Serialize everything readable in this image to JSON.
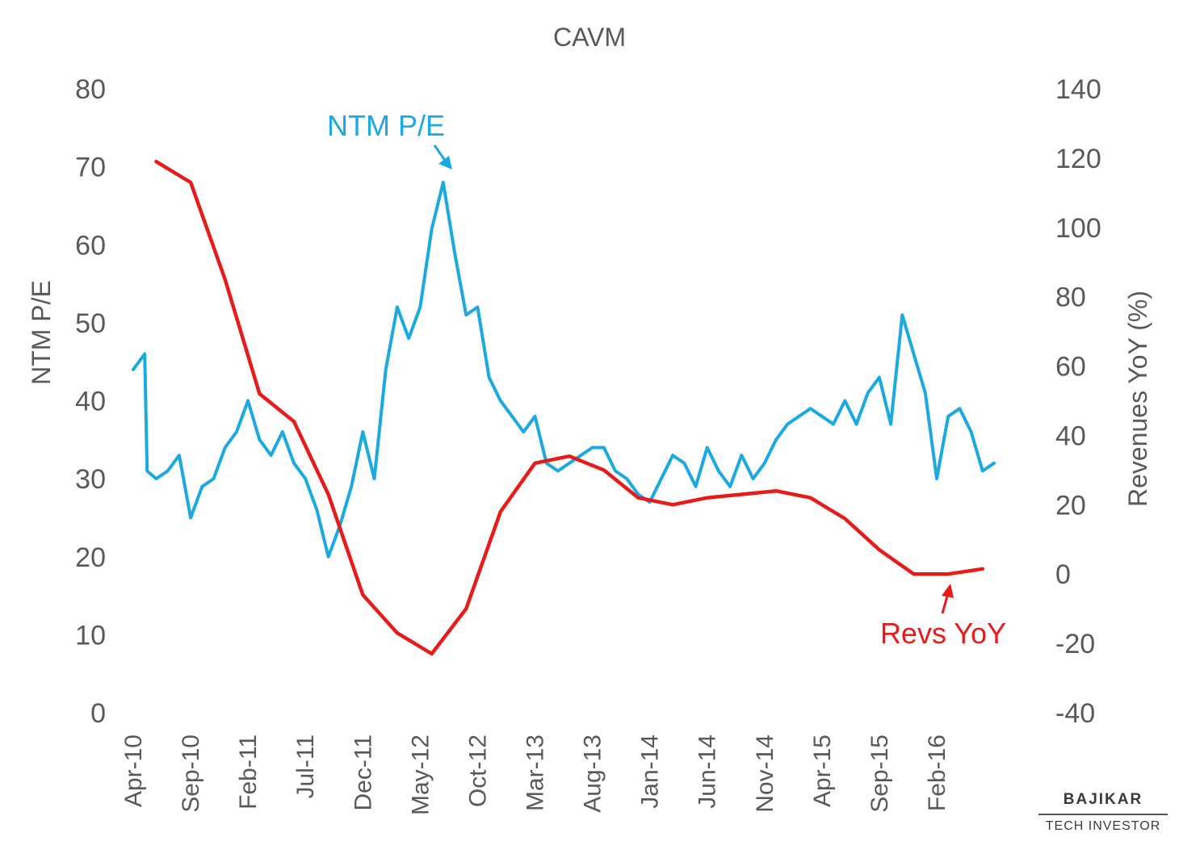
{
  "chart_data": {
    "type": "line",
    "title": "CAVM",
    "y_left": {
      "label": "NTM P/E",
      "lim": [
        0,
        80
      ],
      "ticks": [
        0,
        10,
        20,
        30,
        40,
        50,
        60,
        70,
        80
      ]
    },
    "y_right": {
      "label": "Revenues YoY (%)",
      "lim": [
        -40,
        140
      ],
      "ticks": [
        -40,
        -20,
        0,
        20,
        40,
        60,
        80,
        100,
        120,
        140
      ]
    },
    "x_range": [
      "2010-04",
      "2016-09"
    ],
    "x_ticks": [
      "Apr-10",
      "Sep-10",
      "Feb-11",
      "Jul-11",
      "Dec-11",
      "May-12",
      "Oct-12",
      "Mar-13",
      "Aug-13",
      "Jan-14",
      "Jun-14",
      "Nov-14",
      "Apr-15",
      "Sep-15",
      "Feb-16"
    ],
    "grid": false,
    "series": [
      {
        "name": "NTM P/E",
        "axis": "left",
        "color": "#1AA9E1",
        "points": [
          [
            "2010-04",
            44
          ],
          [
            "2010-05",
            46
          ],
          [
            "2010-05",
            31
          ],
          [
            "2010-06",
            30
          ],
          [
            "2010-07",
            31
          ],
          [
            "2010-08",
            33
          ],
          [
            "2010-09",
            25
          ],
          [
            "2010-10",
            29
          ],
          [
            "2010-11",
            30
          ],
          [
            "2010-12",
            34
          ],
          [
            "2011-01",
            36
          ],
          [
            "2011-02",
            40
          ],
          [
            "2011-03",
            35
          ],
          [
            "2011-04",
            33
          ],
          [
            "2011-05",
            36
          ],
          [
            "2011-06",
            32
          ],
          [
            "2011-07",
            30
          ],
          [
            "2011-08",
            26
          ],
          [
            "2011-09",
            20
          ],
          [
            "2011-10",
            24
          ],
          [
            "2011-11",
            29
          ],
          [
            "2011-12",
            36
          ],
          [
            "2012-01",
            30
          ],
          [
            "2012-02",
            44
          ],
          [
            "2012-03",
            52
          ],
          [
            "2012-04",
            48
          ],
          [
            "2012-05",
            52
          ],
          [
            "2012-06",
            62
          ],
          [
            "2012-07",
            68
          ],
          [
            "2012-08",
            59
          ],
          [
            "2012-09",
            51
          ],
          [
            "2012-10",
            52
          ],
          [
            "2012-11",
            43
          ],
          [
            "2012-12",
            40
          ],
          [
            "2013-01",
            38
          ],
          [
            "2013-02",
            36
          ],
          [
            "2013-03",
            38
          ],
          [
            "2013-04",
            32
          ],
          [
            "2013-05",
            31
          ],
          [
            "2013-06",
            32
          ],
          [
            "2013-07",
            33
          ],
          [
            "2013-08",
            34
          ],
          [
            "2013-09",
            34
          ],
          [
            "2013-10",
            31
          ],
          [
            "2013-11",
            30
          ],
          [
            "2013-12",
            28
          ],
          [
            "2014-01",
            27
          ],
          [
            "2014-02",
            30
          ],
          [
            "2014-03",
            33
          ],
          [
            "2014-04",
            32
          ],
          [
            "2014-05",
            29
          ],
          [
            "2014-06",
            34
          ],
          [
            "2014-07",
            31
          ],
          [
            "2014-08",
            29
          ],
          [
            "2014-09",
            33
          ],
          [
            "2014-10",
            30
          ],
          [
            "2014-11",
            32
          ],
          [
            "2014-12",
            35
          ],
          [
            "2015-01",
            37
          ],
          [
            "2015-02",
            38
          ],
          [
            "2015-03",
            39
          ],
          [
            "2015-04",
            38
          ],
          [
            "2015-05",
            37
          ],
          [
            "2015-06",
            40
          ],
          [
            "2015-07",
            37
          ],
          [
            "2015-08",
            41
          ],
          [
            "2015-09",
            43
          ],
          [
            "2015-10",
            37
          ],
          [
            "2015-11",
            51
          ],
          [
            "2015-12",
            46
          ],
          [
            "2016-01",
            41
          ],
          [
            "2016-02",
            30
          ],
          [
            "2016-03",
            38
          ],
          [
            "2016-04",
            39
          ],
          [
            "2016-05",
            36
          ],
          [
            "2016-06",
            31
          ],
          [
            "2016-07",
            32
          ]
        ]
      },
      {
        "name": "Revs YoY",
        "axis": "right",
        "color": "#E81B1B",
        "points": [
          [
            "2010-06",
            119
          ],
          [
            "2010-09",
            113
          ],
          [
            "2010-12",
            85
          ],
          [
            "2011-03",
            52
          ],
          [
            "2011-06",
            44
          ],
          [
            "2011-09",
            23
          ],
          [
            "2011-12",
            -6
          ],
          [
            "2012-03",
            -17
          ],
          [
            "2012-06",
            -23
          ],
          [
            "2012-09",
            -10
          ],
          [
            "2012-12",
            18
          ],
          [
            "2013-03",
            32
          ],
          [
            "2013-06",
            34
          ],
          [
            "2013-09",
            30
          ],
          [
            "2013-12",
            22
          ],
          [
            "2014-03",
            20
          ],
          [
            "2014-06",
            22
          ],
          [
            "2014-09",
            23
          ],
          [
            "2014-12",
            24
          ],
          [
            "2015-03",
            22
          ],
          [
            "2015-06",
            16
          ],
          [
            "2015-09",
            7
          ],
          [
            "2015-12",
            0
          ],
          [
            "2016-03",
            0
          ],
          [
            "2016-06",
            1.5
          ]
        ]
      }
    ],
    "annotations": [
      {
        "text": "NTM P/E",
        "color": "#1AA9E1"
      },
      {
        "text": "Revs YoY",
        "color": "#E81B1B"
      }
    ]
  },
  "logo": {
    "name": "BAJIKAR",
    "sub": "TECH INVESTOR"
  }
}
